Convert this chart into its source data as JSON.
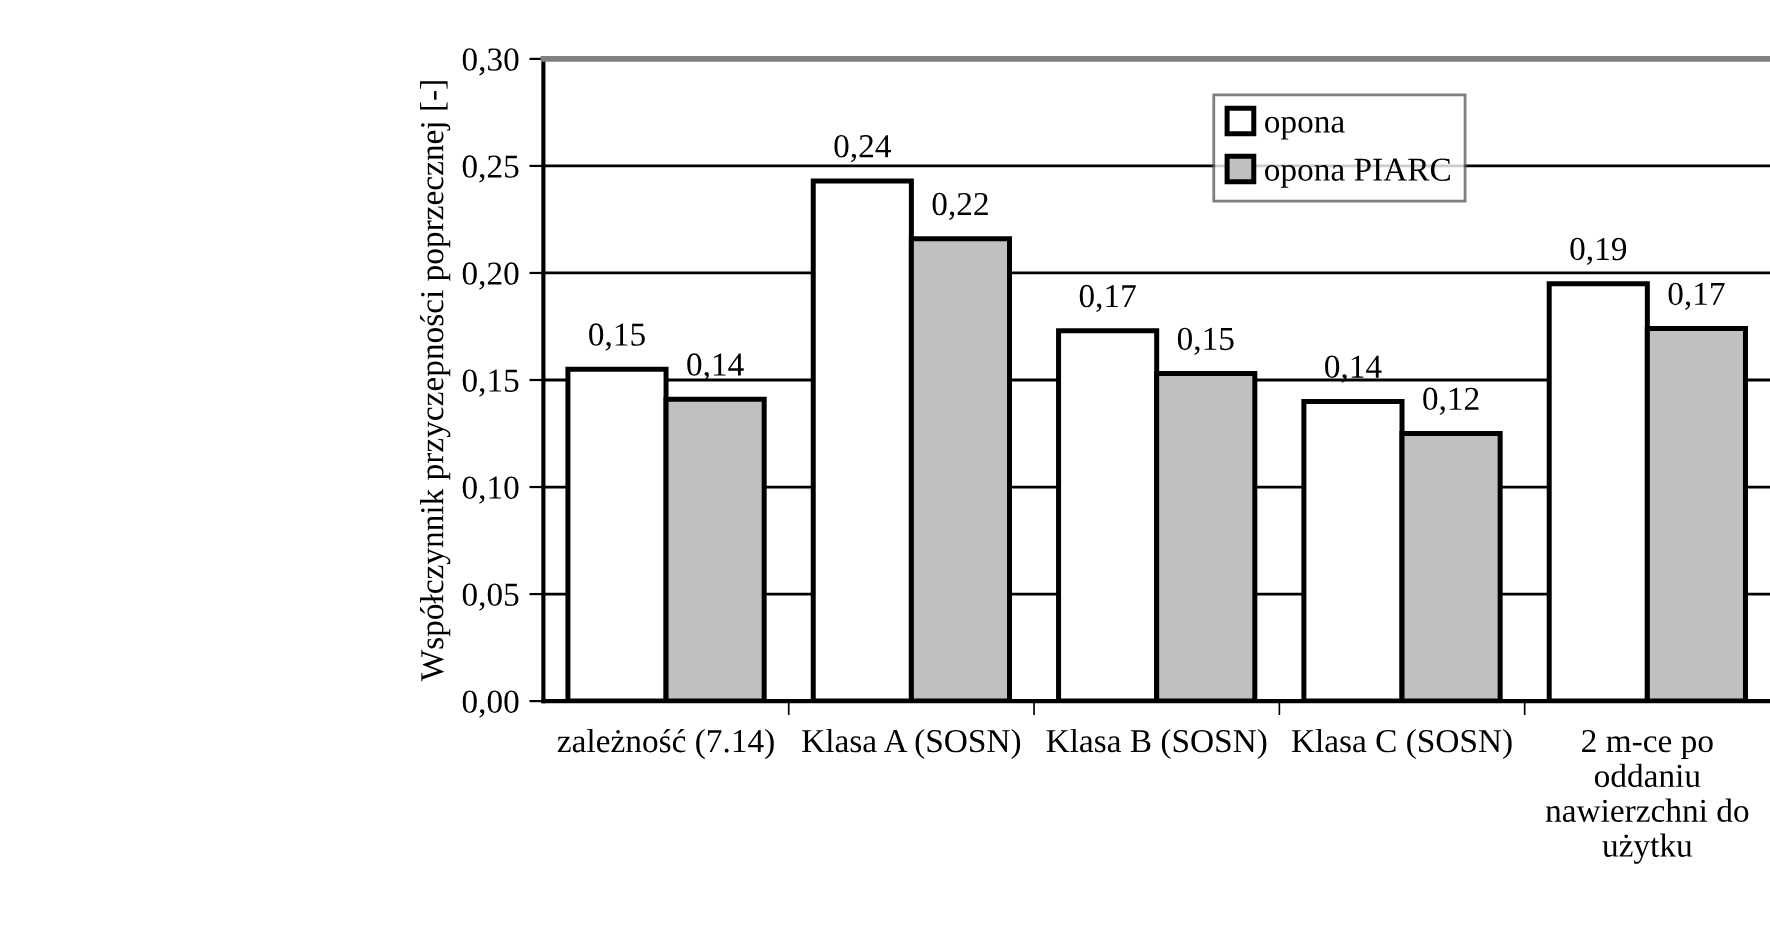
{
  "chart_data": {
    "type": "bar",
    "ylabel": "Współczynnik przyczepności poprzecznej [-]",
    "categories": [
      "zależność (7.14)",
      "Klasa A (SOSN)",
      "Klasa B (SOSN)",
      "Klasa C (SOSN)",
      "2 m-ce po\noddaniu\nnawierzchni do\nużytku"
    ],
    "series": [
      {
        "name": "opona",
        "color": "#ffffff",
        "values": [
          0.155,
          0.243,
          0.173,
          0.14,
          0.195
        ],
        "value_labels": [
          "0,15",
          "0,24",
          "0,17",
          "0,14",
          "0,19"
        ]
      },
      {
        "name": "opona PIARC",
        "color": "#c0c0c0",
        "values": [
          0.141,
          0.216,
          0.153,
          0.125,
          0.174
        ],
        "value_labels": [
          "0,14",
          "0,22",
          "0,15",
          "0,12",
          "0,17"
        ]
      }
    ],
    "ylim": [
      0,
      0.3
    ],
    "yticks": [
      {
        "value": 0,
        "label": "0,00"
      },
      {
        "value": 0.05,
        "label": "0,05"
      },
      {
        "value": 0.1,
        "label": "0,10"
      },
      {
        "value": 0.15,
        "label": "0,15"
      },
      {
        "value": 0.2,
        "label": "0,20"
      },
      {
        "value": 0.25,
        "label": "0,25"
      },
      {
        "value": 0.3,
        "label": "0,30"
      }
    ],
    "grid": "y",
    "legend": "top right"
  }
}
